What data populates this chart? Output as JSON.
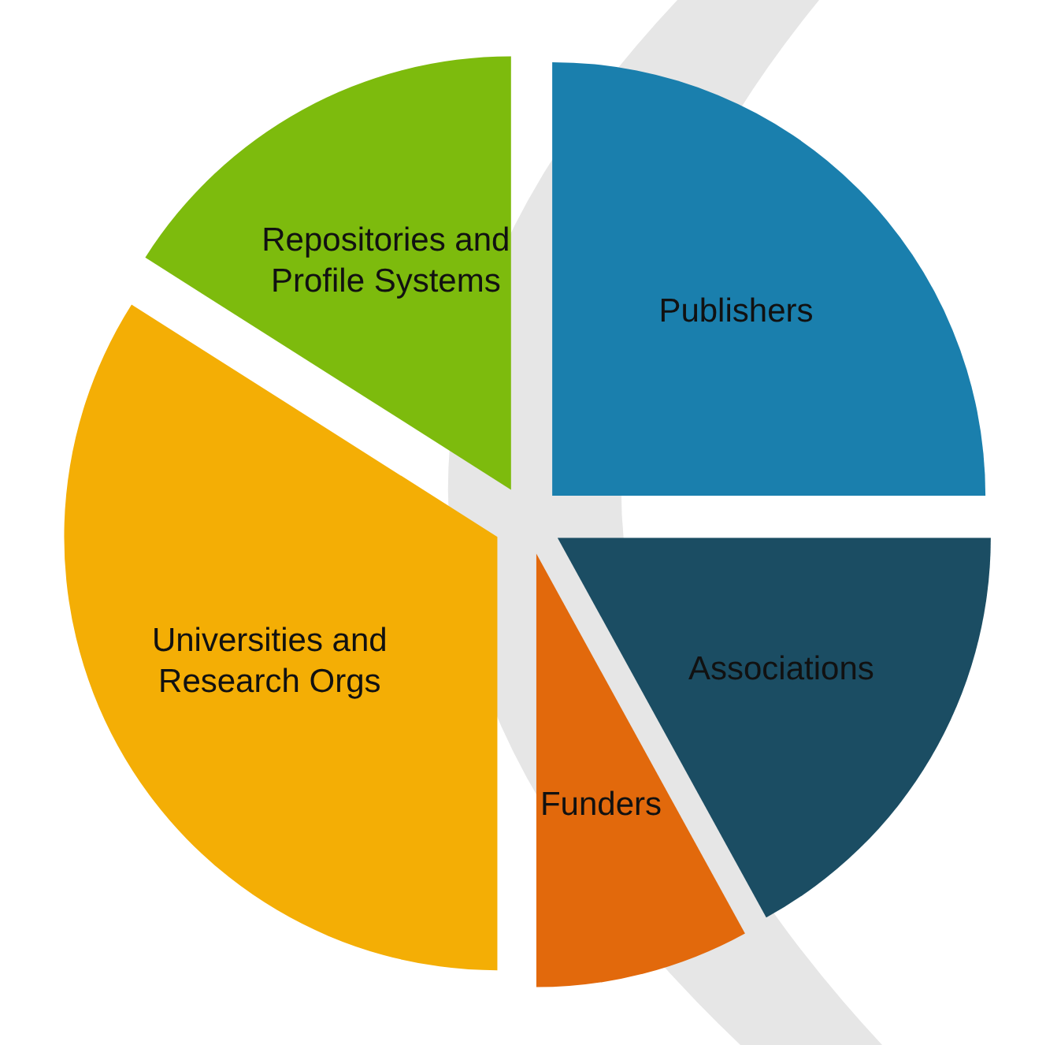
{
  "chart_data": {
    "type": "pie",
    "categories": [
      "Publishers",
      "Associations",
      "Funders",
      "Universities and Research Orgs",
      "Repositories and Profile Systems"
    ],
    "values": [
      25,
      17,
      8,
      34,
      16
    ],
    "colors": [
      "#1a7fad",
      "#1b4d63",
      "#e2690c",
      "#f4ae05",
      "#7dbb0d"
    ],
    "legend": false
  }
}
